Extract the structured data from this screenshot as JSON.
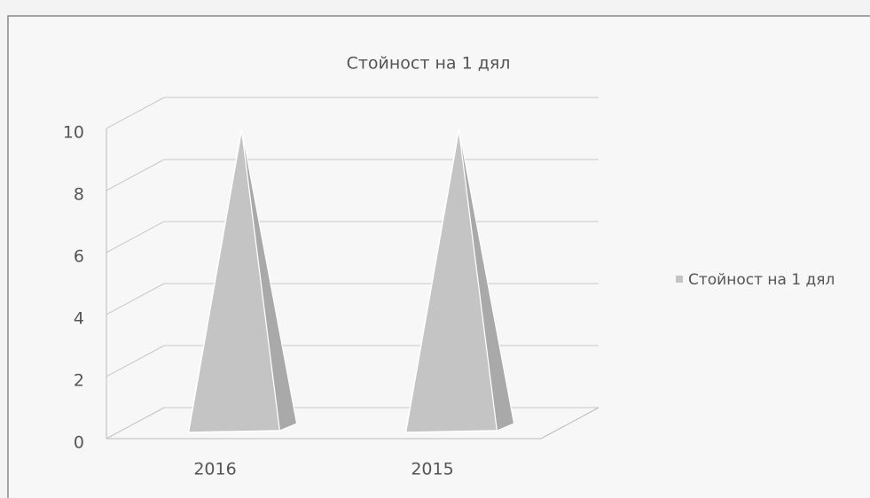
{
  "chart_data": {
    "type": "pyramid",
    "title": "Стойност на 1 дял",
    "categories": [
      "2016",
      "2015"
    ],
    "series": [
      {
        "name": "Стойност на 1 дял",
        "color": "#c4c4c4",
        "values": [
          10,
          10
        ]
      }
    ],
    "ylim": [
      0,
      10
    ],
    "yticks": [
      0,
      2,
      4,
      6,
      8,
      10
    ],
    "grid": true,
    "legend": "right"
  }
}
